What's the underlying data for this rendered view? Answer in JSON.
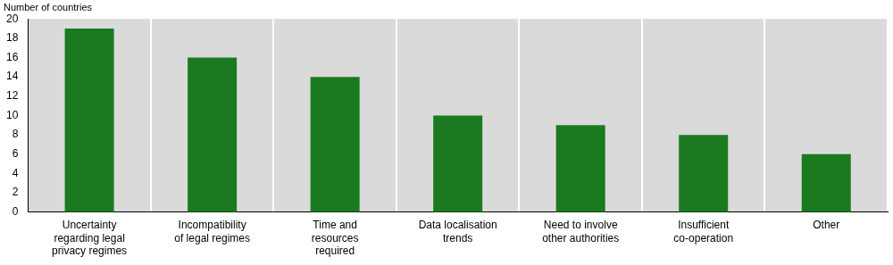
{
  "chart_data": {
    "type": "bar",
    "y_label": "Number of countries",
    "categories": [
      [
        "Uncertainty",
        "regarding legal",
        "privacy regimes"
      ],
      [
        "Incompatibility",
        "of legal regimes"
      ],
      [
        "Time and",
        "resources",
        "required"
      ],
      [
        "Data localisation",
        "trends"
      ],
      [
        "Need to involve",
        "other authorities"
      ],
      [
        "Insufficient",
        "co-operation"
      ],
      [
        "Other"
      ]
    ],
    "values": [
      19,
      16,
      14,
      10,
      9,
      8,
      6
    ],
    "color": "#1b7a1f",
    "ylim": [
      0,
      20
    ],
    "yticks": [
      0,
      2,
      4,
      6,
      8,
      10,
      12,
      14,
      16,
      18,
      20
    ],
    "grid": true
  }
}
